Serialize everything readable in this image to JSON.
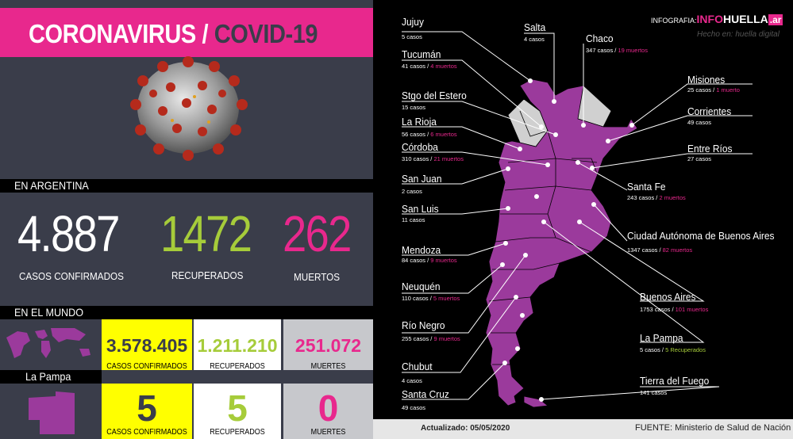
{
  "header": {
    "title_main": "CORONAVIRUS /",
    "title_accent": " COVID-19"
  },
  "argentina": {
    "section_label": "EN ARGENTINA",
    "confirmed_value": "4.887",
    "confirmed_label": "CASOS CONFIRMADOS",
    "recovered_value": "1472",
    "recovered_label": "RECUPERADOS",
    "deaths_value": "262",
    "deaths_label": "MUERTOS"
  },
  "world": {
    "section_label": "EN EL MUNDO",
    "confirmed_value": "3.578.405",
    "confirmed_label": "CASOS CONFIRMADOS",
    "recovered_value": "1.211.210",
    "recovered_label": "RECUPERADOS",
    "deaths_value": "251.072",
    "deaths_label": "MUERTES"
  },
  "lapampa": {
    "section_label": "La Pampa",
    "confirmed_value": "5",
    "confirmed_label": "CASOS CONFIRMADOS",
    "recovered_value": "5",
    "recovered_label": "RECUPERADOS",
    "deaths_value": "0",
    "deaths_label": "MUERTES"
  },
  "logo": {
    "prefix": "INFOGRAFIA:",
    "info": "INFO",
    "huella": "HUELLA",
    "ar": ".ar",
    "subtitle": "Hecho en: huella digital"
  },
  "footer": {
    "updated": "Actualizado: 05/05/2020",
    "source_label": "FUENTE:",
    "source_value": " Ministerio de Salud de Nación"
  },
  "colors": {
    "pink": "#e8288d",
    "green": "#a6cc3a",
    "yellow": "#ffff00",
    "panel": "#3a3d4a",
    "map": "#9b3a9c"
  },
  "provinces": {
    "jujuy": {
      "name": "Jujuy",
      "cases": "5 casos"
    },
    "salta": {
      "name": "Salta",
      "cases": "4 casos"
    },
    "chaco": {
      "name": "Chaco",
      "cases": "347 casos / ",
      "deaths": "19 muertos"
    },
    "tucuman": {
      "name": "Tucumán",
      "cases": "41 casos / ",
      "deaths": "4 muertos"
    },
    "misiones": {
      "name": "Misiones",
      "cases": "25 casos / ",
      "deaths": "1 muerto"
    },
    "stgo": {
      "name": "Stgo del Estero",
      "cases": "15 casos"
    },
    "corrientes": {
      "name": "Corrientes",
      "cases": "49 casos"
    },
    "larioja": {
      "name": "La Rioja",
      "cases": "56 casos / ",
      "deaths": "6 muertos"
    },
    "cordoba": {
      "name": "Córdoba",
      "cases": "310 casos / ",
      "deaths": "21 muertos"
    },
    "entrerios": {
      "name": "Entre Ríos",
      "cases": "27 casos"
    },
    "sanjuan": {
      "name": "San Juan",
      "cases": "2 casos"
    },
    "santafe": {
      "name": "Santa Fe",
      "cases": "243 casos / ",
      "deaths": "2 muertos"
    },
    "sanluis": {
      "name": "San Luis",
      "cases": "11 casos"
    },
    "caba": {
      "name": "Ciudad Autónoma de Buenos Aires",
      "cases": "1347 casos / ",
      "deaths": "82 muertos"
    },
    "mendoza": {
      "name": "Mendoza",
      "cases": "84 casos / ",
      "deaths": "9 muertos"
    },
    "neuquen": {
      "name": "Neuquén",
      "cases": "110 casos / ",
      "deaths": "5 muertos"
    },
    "bsas": {
      "name": "Buenos Aires",
      "cases": "1753 casos / ",
      "deaths": "101 muertos"
    },
    "rionegro": {
      "name": "Río Negro",
      "cases": "255 casos / ",
      "deaths": "9 muertos"
    },
    "lapampa": {
      "name": "La Pampa",
      "cases": "5 casos / ",
      "recovered": "5 Recuperados"
    },
    "chubut": {
      "name": "Chubut",
      "cases": "4 casos"
    },
    "tdf": {
      "name": "Tierra del Fuego",
      "cases": "141 casos"
    },
    "santacruz": {
      "name": "Santa Cruz",
      "cases": "49 casos"
    }
  }
}
